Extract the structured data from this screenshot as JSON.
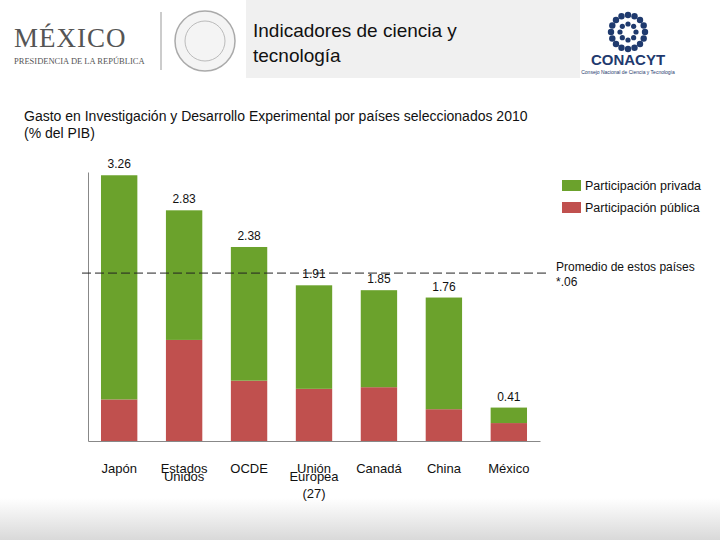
{
  "header": {
    "left_title": "MÉXICO",
    "left_subtitle": "PRESIDENCIA DE LA REPÚBLICA",
    "title_lines": [
      "Indicadores de ciencia y",
      "tecnología"
    ],
    "right_title": "CONACYT",
    "right_subtitle": "Consejo Nacional de Ciencia y Tecnología"
  },
  "chart_data": {
    "type": "bar",
    "stacked": true,
    "title": "Gasto en Investigación y Desarrollo Experimental por países seleccionados 2010",
    "subtitle": "(% del PIB)",
    "categories": [
      "Japón",
      "Estados Unidos",
      "OCDE",
      "Unión Europea (27)",
      "Canadá",
      "China",
      "México"
    ],
    "series": [
      {
        "name": "Participación privada",
        "color": "#6ba22c",
        "values": [
          2.75,
          1.59,
          1.64,
          1.27,
          1.19,
          1.37,
          0.19
        ]
      },
      {
        "name": "Participación pública",
        "color": "#c0504e",
        "values": [
          0.51,
          1.24,
          0.74,
          0.64,
          0.66,
          0.39,
          0.22
        ]
      }
    ],
    "totals": [
      3.26,
      2.83,
      2.38,
      1.91,
      1.85,
      1.76,
      0.41
    ],
    "average": {
      "value": 2.06,
      "label": "Promedio de estos países *.06",
      "line_style": "dashed"
    },
    "ylim": [
      0,
      3.3
    ],
    "yticks": [],
    "tick_labels": "x",
    "legend": "right",
    "grid": false
  }
}
